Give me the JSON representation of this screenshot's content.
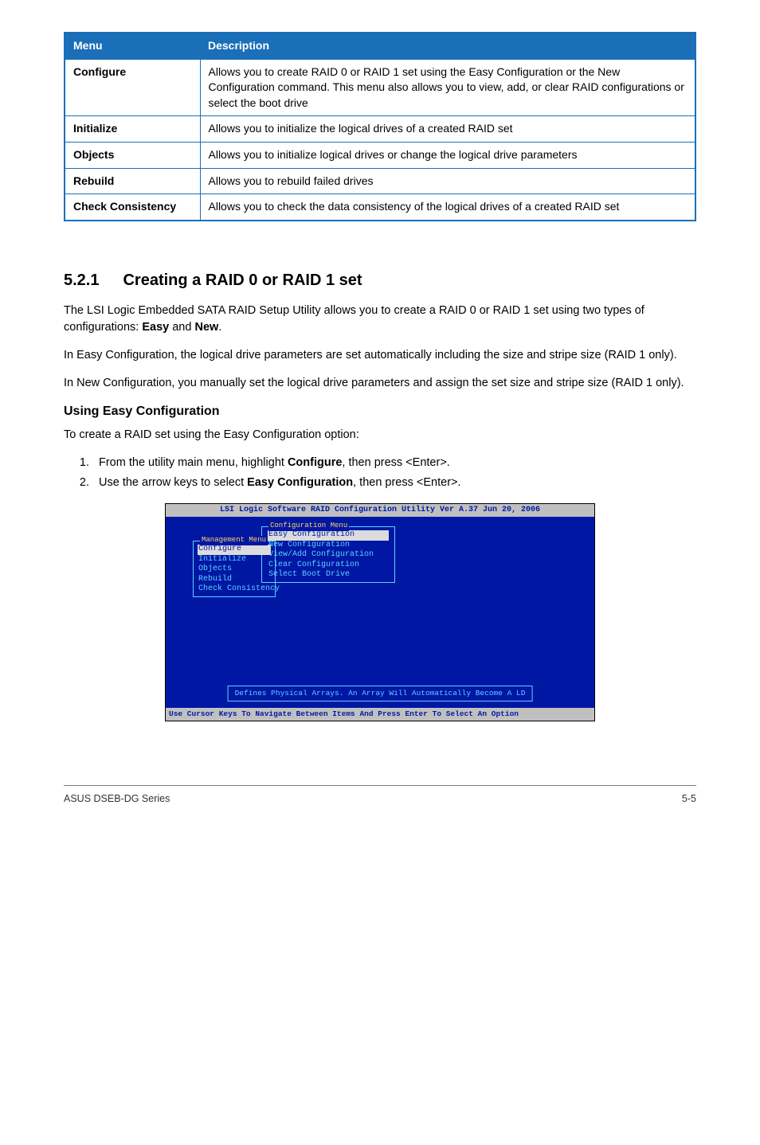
{
  "table": {
    "headers": [
      "Menu",
      "Description"
    ],
    "rows": [
      {
        "menu": "Configure",
        "desc": "Allows you to create RAID 0 or RAID 1 set using the Easy Configuration or the New Configuration command. This menu also allows you to view, add, or clear RAID configurations or select the boot drive"
      },
      {
        "menu": "Initialize",
        "desc": "Allows you to initialize the logical drives of a created RAID set"
      },
      {
        "menu": "Objects",
        "desc": "Allows you to initialize logical drives or change the logical drive parameters"
      },
      {
        "menu": "Rebuild",
        "desc": "Allows you to rebuild failed drives"
      },
      {
        "menu": "Check Consistency",
        "desc": "Allows you to check the data consistency of the logical drives of a created RAID set"
      }
    ]
  },
  "section": {
    "num": "5.2.1",
    "title": "Creating a RAID 0 or RAID 1 set"
  },
  "paras": {
    "p1a": "The LSI Logic Embedded SATA RAID Setup Utility allows you to create a RAID 0 or RAID 1 set using two types of configurations: ",
    "p1_easy": "Easy",
    "p1_and": " and ",
    "p1_new": "New",
    "p1_end": ".",
    "p2": "In Easy Configuration, the logical drive parameters are set automatically including the size and stripe size (RAID 1 only).",
    "p3": "In New Configuration, you manually set the logical drive parameters and assign the set size and stripe size (RAID 1 only)."
  },
  "sub": "Using Easy Configuration",
  "sub_intro": "To create a RAID set using the Easy Configuration option:",
  "steps": {
    "s1a": "From the utility main menu, highlight ",
    "s1b": "Configure",
    "s1c": ", then press <Enter>.",
    "s2a": "Use the arrow keys to select ",
    "s2b": "Easy Configuration",
    "s2c": ", then press <Enter>."
  },
  "bios": {
    "title": "LSI Logic Software RAID Configuration Utility Ver A.37 Jun 20, 2006",
    "mgmt_title": "Management Menu",
    "mgmt_items": [
      "Configure",
      "Initialize",
      "Objects",
      "Rebuild",
      "Check Consistency"
    ],
    "cfg_title": "Configuration Menu",
    "cfg_items": [
      "Easy Configuration",
      "New Configuration",
      "View/Add Configuration",
      "Clear Configuration",
      "Select Boot Drive"
    ],
    "hint": "Defines Physical Arrays. An Array Will Automatically Become A LD",
    "footer": "Use Cursor Keys To Navigate Between Items And Press Enter To Select An Option"
  },
  "footer": {
    "left": "ASUS DSEB-DG Series",
    "right": "5-5"
  }
}
